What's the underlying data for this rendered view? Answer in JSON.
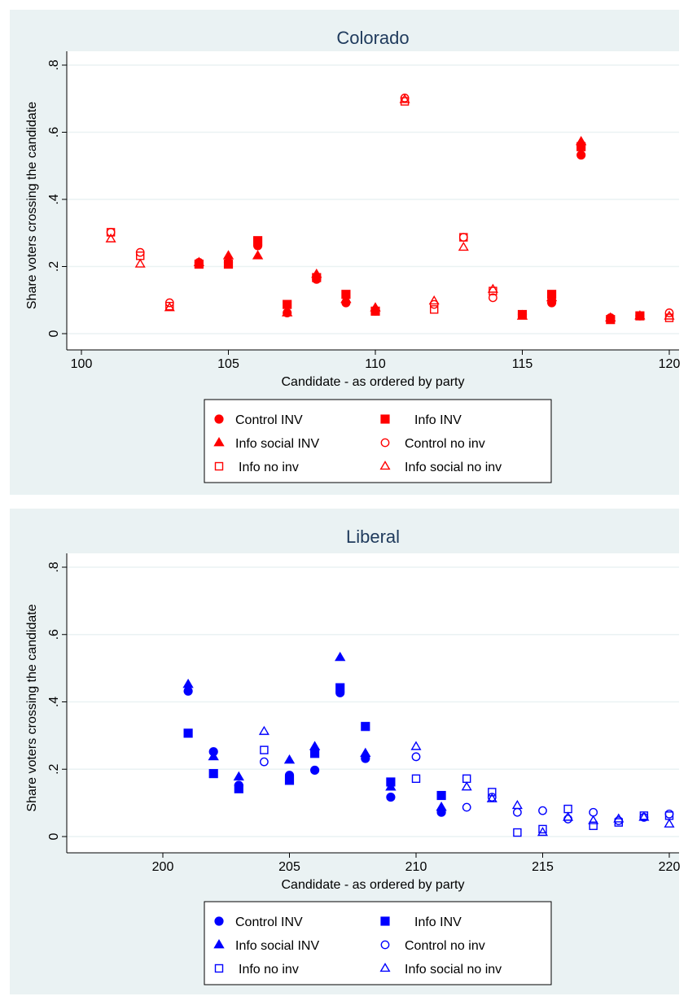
{
  "colors": {
    "background": "#eaf2f3",
    "plot_bg": "#ffffff",
    "grid": "#eaf2f3",
    "title": "#1f3a5c"
  },
  "chart_data": [
    {
      "type": "scatter",
      "title": "Colorado",
      "xlabel": "Candidate - as ordered by party",
      "ylabel": "Share voters crossing the candidate",
      "xlim": [
        100,
        120
      ],
      "ylim": [
        0,
        0.8
      ],
      "xticks": [
        100,
        105,
        110,
        115,
        120
      ],
      "yticks": [
        0,
        0.2,
        0.4,
        0.6,
        0.8
      ],
      "ytick_labels": [
        "0",
        ".2",
        ".4",
        ".6",
        ".8"
      ],
      "grid": true,
      "legend_position": "bottom",
      "color": "#ff0000",
      "x": [
        101,
        102,
        103,
        104,
        105,
        106,
        107,
        108,
        109,
        110,
        111,
        112,
        113,
        114,
        115,
        116,
        117,
        118,
        119,
        120
      ],
      "series": [
        {
          "name": "Control INV",
          "marker": "circle",
          "filled": true,
          "points": [
            [
              104,
              0.212
            ],
            [
              105,
              0.212
            ],
            [
              106,
              0.262
            ],
            [
              107,
              0.062
            ],
            [
              108,
              0.162
            ],
            [
              109,
              0.092
            ],
            [
              110,
              0.067
            ],
            [
              115,
              0.057
            ],
            [
              116,
              0.092
            ],
            [
              117,
              0.532
            ],
            [
              118,
              0.047
            ],
            [
              119,
              0.053
            ]
          ]
        },
        {
          "name": "Info  INV",
          "marker": "square",
          "filled": true,
          "points": [
            [
              104,
              0.207
            ],
            [
              105,
              0.207
            ],
            [
              106,
              0.277
            ],
            [
              107,
              0.087
            ],
            [
              108,
              0.167
            ],
            [
              109,
              0.117
            ],
            [
              110,
              0.067
            ],
            [
              115,
              0.057
            ],
            [
              116,
              0.117
            ],
            [
              117,
              0.557
            ],
            [
              118,
              0.042
            ],
            [
              119,
              0.053
            ]
          ]
        },
        {
          "name": "Info social INV",
          "marker": "triangle",
          "filled": true,
          "points": [
            [
              104,
              0.212
            ],
            [
              105,
              0.232
            ],
            [
              106,
              0.232
            ],
            [
              107,
              0.062
            ],
            [
              108,
              0.177
            ],
            [
              109,
              0.102
            ],
            [
              110,
              0.077
            ],
            [
              115,
              0.052
            ],
            [
              116,
              0.107
            ],
            [
              117,
              0.572
            ],
            [
              118,
              0.047
            ],
            [
              119,
              0.053
            ]
          ]
        },
        {
          "name": "Control no inv",
          "marker": "circle",
          "filled": false,
          "points": [
            [
              101,
              0.302
            ],
            [
              102,
              0.242
            ],
            [
              103,
              0.092
            ],
            [
              111,
              0.702
            ],
            [
              112,
              0.087
            ],
            [
              113,
              0.287
            ],
            [
              114,
              0.107
            ],
            [
              120,
              0.062
            ]
          ]
        },
        {
          "name": "Info no inv",
          "marker": "square",
          "filled": false,
          "points": [
            [
              101,
              0.302
            ],
            [
              102,
              0.232
            ],
            [
              103,
              0.082
            ],
            [
              111,
              0.692
            ],
            [
              112,
              0.072
            ],
            [
              113,
              0.287
            ],
            [
              114,
              0.127
            ],
            [
              120,
              0.047
            ]
          ]
        },
        {
          "name": "Info social no inv",
          "marker": "triangle",
          "filled": false,
          "points": [
            [
              101,
              0.282
            ],
            [
              102,
              0.207
            ],
            [
              103,
              0.077
            ],
            [
              111,
              0.697
            ],
            [
              112,
              0.097
            ],
            [
              113,
              0.257
            ],
            [
              114,
              0.132
            ],
            [
              120,
              0.052
            ]
          ]
        }
      ]
    },
    {
      "type": "scatter",
      "title": "Liberal",
      "xlabel": "Candidate - as ordered by party",
      "ylabel": "Share voters crossing the candidate",
      "xlim": [
        200,
        220
      ],
      "ylim": [
        0,
        0.8
      ],
      "xticks": [
        200,
        205,
        210,
        215,
        220
      ],
      "yticks": [
        0,
        0.2,
        0.4,
        0.6,
        0.8
      ],
      "ytick_labels": [
        "0",
        ".2",
        ".4",
        ".6",
        ".8"
      ],
      "grid": true,
      "legend_position": "bottom",
      "color": "#0000ff",
      "x": [
        201,
        202,
        203,
        204,
        205,
        206,
        207,
        208,
        209,
        210,
        211,
        212,
        213,
        214,
        215,
        216,
        217,
        218,
        219,
        220
      ],
      "series": [
        {
          "name": "Control INV",
          "marker": "circle",
          "filled": true,
          "points": [
            [
              201,
              0.432
            ],
            [
              202,
              0.252
            ],
            [
              203,
              0.152
            ],
            [
              205,
              0.182
            ],
            [
              206,
              0.197
            ],
            [
              207,
              0.427
            ],
            [
              208,
              0.232
            ],
            [
              209,
              0.117
            ],
            [
              211,
              0.072
            ]
          ]
        },
        {
          "name": "Info  INV",
          "marker": "square",
          "filled": true,
          "points": [
            [
              201,
              0.307
            ],
            [
              202,
              0.187
            ],
            [
              203,
              0.142
            ],
            [
              205,
              0.167
            ],
            [
              206,
              0.247
            ],
            [
              207,
              0.442
            ],
            [
              208,
              0.327
            ],
            [
              209,
              0.162
            ],
            [
              211,
              0.122
            ]
          ]
        },
        {
          "name": "Info social INV",
          "marker": "triangle",
          "filled": true,
          "points": [
            [
              201,
              0.452
            ],
            [
              202,
              0.237
            ],
            [
              203,
              0.177
            ],
            [
              205,
              0.227
            ],
            [
              206,
              0.267
            ],
            [
              207,
              0.532
            ],
            [
              208,
              0.247
            ],
            [
              209,
              0.147
            ],
            [
              211,
              0.087
            ]
          ]
        },
        {
          "name": "Control no inv",
          "marker": "circle",
          "filled": false,
          "points": [
            [
              204,
              0.222
            ],
            [
              210,
              0.237
            ],
            [
              212,
              0.087
            ],
            [
              213,
              0.117
            ],
            [
              214,
              0.072
            ],
            [
              215,
              0.077
            ],
            [
              216,
              0.052
            ],
            [
              217,
              0.072
            ],
            [
              218,
              0.047
            ],
            [
              219,
              0.057
            ],
            [
              220,
              0.067
            ]
          ]
        },
        {
          "name": "Info no inv",
          "marker": "square",
          "filled": false,
          "points": [
            [
              204,
              0.257
            ],
            [
              210,
              0.172
            ],
            [
              212,
              0.172
            ],
            [
              213,
              0.132
            ],
            [
              214,
              0.012
            ],
            [
              215,
              0.022
            ],
            [
              216,
              0.082
            ],
            [
              217,
              0.032
            ],
            [
              218,
              0.042
            ],
            [
              219,
              0.062
            ],
            [
              220,
              0.062
            ]
          ]
        },
        {
          "name": "Info social no inv",
          "marker": "triangle",
          "filled": false,
          "points": [
            [
              204,
              0.312
            ],
            [
              210,
              0.267
            ],
            [
              212,
              0.147
            ],
            [
              213,
              0.112
            ],
            [
              214,
              0.092
            ],
            [
              215,
              0.012
            ],
            [
              216,
              0.057
            ],
            [
              217,
              0.047
            ],
            [
              218,
              0.052
            ],
            [
              219,
              0.057
            ],
            [
              220,
              0.037
            ]
          ]
        }
      ]
    }
  ]
}
